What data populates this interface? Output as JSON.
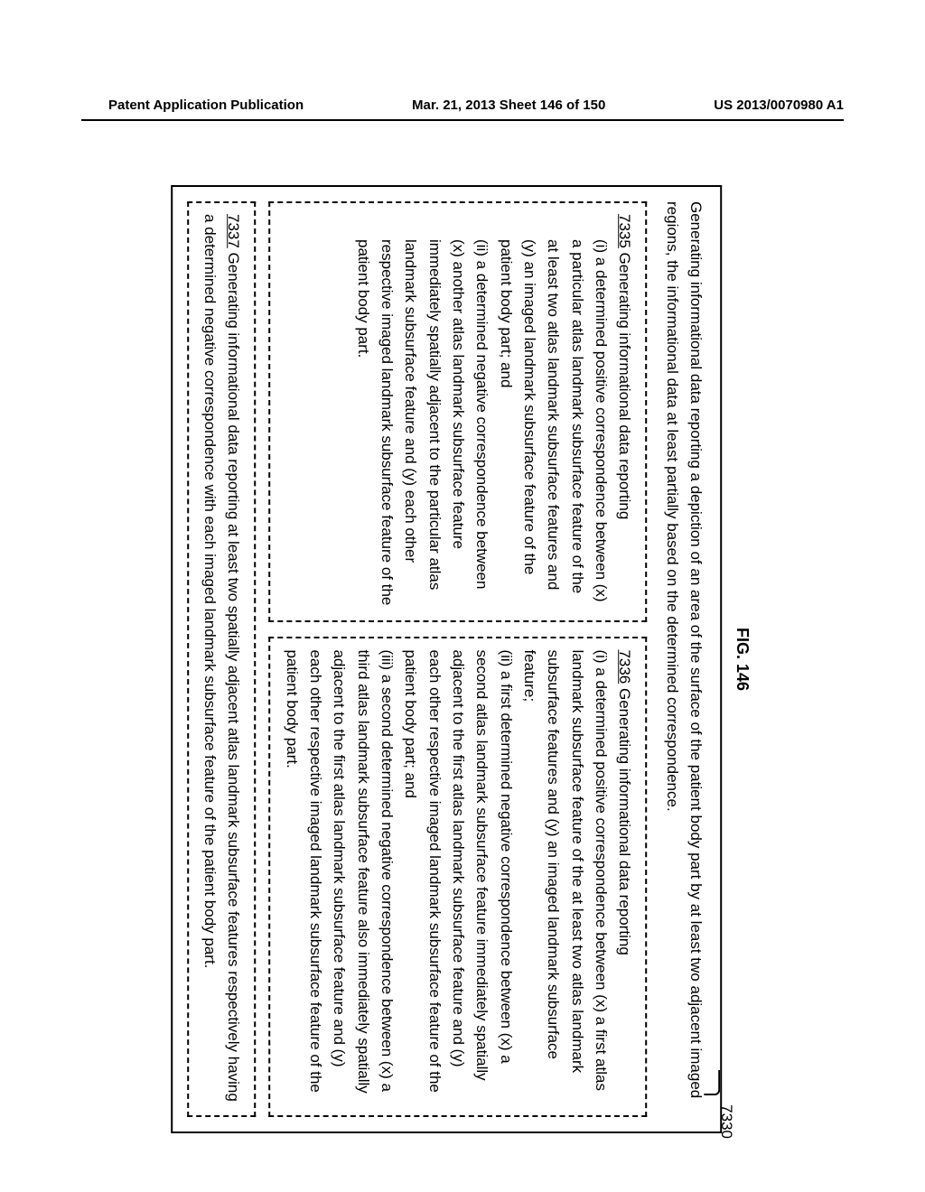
{
  "header": {
    "left": "Patent Application Publication",
    "center": "Mar. 21, 2013  Sheet 146 of 150",
    "right": "US 2013/0070980 A1"
  },
  "figure": {
    "label": "FIG. 146",
    "ref_number": "7330"
  },
  "outer": {
    "text": "Generating informational data reporting a depiction of an area of the surface of the patient body part by at least two adjacent imaged regions, the informational data at least partially based on the determined correspondence."
  },
  "box7335": {
    "ref": "7335",
    "lead": "  Generating informational data reporting",
    "i_label": "(i)  a determined positive correspondence between (x) a particular atlas landmark subsurface feature of the at least two atlas landmark subsurface features and (y) an imaged landmark subsurface feature of the patient body part; and",
    "ii_label": "(ii)  a determined negative correspondence between (x) another atlas landmark subsurface feature immediately spatially adjacent to the particular atlas landmark subsurface feature and (y) each other respective imaged landmark subsurface feature of the patient body part."
  },
  "box7336": {
    "ref": "7336",
    "lead": "  Generating informational data reporting",
    "i": "(i)  a determined positive correspondence between (x) a first atlas landmark subsurface feature of the at least two atlas landmark subsurface features and (y) an imaged landmark subsurface feature;",
    "ii": "(ii)  a first determined negative correspondence between (x) a second atlas landmark subsurface feature immediately spatially adjacent to the first atlas landmark subsurface feature and (y) each other respective imaged landmark subsurface feature of the patient body part; and",
    "iii": "(iii)  a second determined negative correspondence between (x) a third atlas landmark subsurface feature also immediately spatially adjacent to the first atlas landmark subsurface feature and (y) each other respective imaged landmark subsurface feature of the patient body part."
  },
  "box7337": {
    "ref": "7337",
    "text": "  Generating informational data reporting at least two spatially adjacent atlas landmark subsurface features respectively having a determined negative correspondence with each imaged landmark subsurface feature of the patient body part."
  }
}
